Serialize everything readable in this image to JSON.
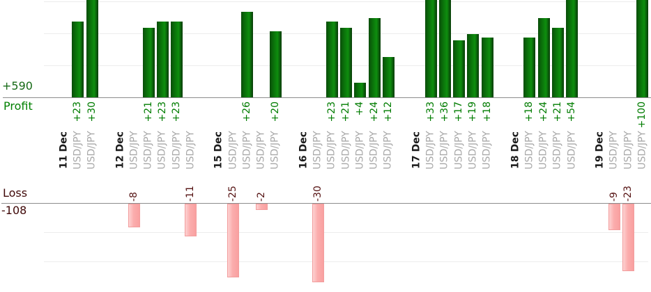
{
  "summary": {
    "profit_total_label": "+590",
    "profit_axis_label": "Profit",
    "loss_axis_label": "Loss",
    "loss_total_label": "-108"
  },
  "colors": {
    "profit_bar": "#0a6e0a",
    "profit_value_text": "#007c00",
    "profit_total_text": "#166a16",
    "profit_name_text": "#008000",
    "loss_bar": "#fbadad",
    "loss_bar_border": "#f29d9d",
    "loss_value_text": "#541111",
    "loss_total_text": "#3f0808",
    "date_text": "#1a1a1a",
    "symbol_text": "#a8a8a8",
    "gridline": "#ececec",
    "axis_line": "#8c8c8c"
  },
  "chart_data": {
    "type": "bar",
    "title": "",
    "xlabel": "",
    "ylabel_top": "Profit",
    "ylabel_bottom": "Loss",
    "profit_total": 590,
    "loss_total": -108,
    "symbol": "USD/JPY",
    "categories": [
      "11 Dec",
      "12 Dec",
      "15 Dec",
      "16 Dec",
      "17 Dec",
      "18 Dec",
      "19 Dec"
    ],
    "groups": [
      {
        "date": "11 Dec",
        "trades": [
          {
            "symbol": "USD/JPY",
            "value": 23,
            "label": "+23"
          },
          {
            "symbol": "USD/JPY",
            "value": 30,
            "label": "+30"
          }
        ]
      },
      {
        "date": "12 Dec",
        "trades": [
          {
            "symbol": "USD/JPY",
            "value": -8,
            "label": "-8"
          },
          {
            "symbol": "USD/JPY",
            "value": 21,
            "label": "+21"
          },
          {
            "symbol": "USD/JPY",
            "value": 23,
            "label": "+23"
          },
          {
            "symbol": "USD/JPY",
            "value": 23,
            "label": "+23"
          },
          {
            "symbol": "USD/JPY",
            "value": -11,
            "label": "-11"
          }
        ]
      },
      {
        "date": "15 Dec",
        "trades": [
          {
            "symbol": "USD/JPY",
            "value": -25,
            "label": "-25"
          },
          {
            "symbol": "USD/JPY",
            "value": 26,
            "label": "+26"
          },
          {
            "symbol": "USD/JPY",
            "value": -2,
            "label": "-2"
          },
          {
            "symbol": "USD/JPY",
            "value": 20,
            "label": "+20"
          }
        ]
      },
      {
        "date": "16 Dec",
        "trades": [
          {
            "symbol": "USD/JPY",
            "value": -30,
            "label": "-30"
          },
          {
            "symbol": "USD/JPY",
            "value": 23,
            "label": "+23"
          },
          {
            "symbol": "USD/JPY",
            "value": 21,
            "label": "+21"
          },
          {
            "symbol": "USD/JPY",
            "value": 4,
            "label": "+4"
          },
          {
            "symbol": "USD/JPY",
            "value": 24,
            "label": "+24"
          },
          {
            "symbol": "USD/JPY",
            "value": 12,
            "label": "+12"
          }
        ]
      },
      {
        "date": "17 Dec",
        "trades": [
          {
            "symbol": "USD/JPY",
            "value": 33,
            "label": "+33"
          },
          {
            "symbol": "USD/JPY",
            "value": 36,
            "label": "+36"
          },
          {
            "symbol": "USD/JPY",
            "value": 17,
            "label": "+17"
          },
          {
            "symbol": "USD/JPY",
            "value": 19,
            "label": "+19"
          },
          {
            "symbol": "USD/JPY",
            "value": 18,
            "label": "+18"
          }
        ]
      },
      {
        "date": "18 Dec",
        "trades": [
          {
            "symbol": "USD/JPY",
            "value": 18,
            "label": "+18"
          },
          {
            "symbol": "USD/JPY",
            "value": 24,
            "label": "+24"
          },
          {
            "symbol": "USD/JPY",
            "value": 21,
            "label": "+21"
          },
          {
            "symbol": "USD/JPY",
            "value": 54,
            "label": "+54"
          }
        ]
      },
      {
        "date": "19 Dec",
        "trades": [
          {
            "symbol": "USD/JPY",
            "value": -9,
            "label": "-9"
          },
          {
            "symbol": "USD/JPY",
            "value": -23,
            "label": "-23"
          },
          {
            "symbol": "USD/JPY",
            "value": 100,
            "label": "+100"
          }
        ]
      }
    ],
    "profit_axis": {
      "range_visible": [
        0,
        30
      ],
      "gridlines": [
        10,
        20,
        30
      ],
      "bars_clipped_above": 30,
      "grid": true
    },
    "loss_axis": {
      "range_visible": [
        0,
        -27
      ],
      "gridlines": [
        -10,
        -20
      ],
      "bars_clipped_below": -27,
      "grid": true
    },
    "legend_position": "none"
  }
}
